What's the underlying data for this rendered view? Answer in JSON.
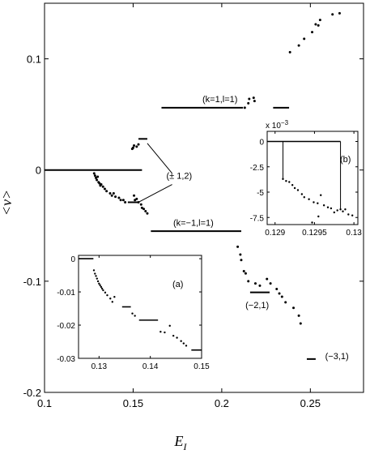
{
  "chart_data": [
    {
      "panel": "main",
      "type": "scatter",
      "xlabel": "E",
      "xlabel_sub": "I",
      "ylabel": "<ν>",
      "xlim": [
        0.1,
        0.28
      ],
      "ylim": [
        -0.2,
        0.15
      ],
      "x_ticks": [
        0.1,
        0.15,
        0.2,
        0.25
      ],
      "x_tick_labels": [
        "0.1",
        "0.15",
        "0.2",
        "0.25"
      ],
      "y_ticks": [
        -0.2,
        -0.1,
        0,
        0.1
      ],
      "y_tick_labels": [
        "-0.2",
        "-0.1",
        "0",
        "0.1"
      ],
      "segments": [
        {
          "x": [
            0.1,
            0.155
          ],
          "y": 0.0
        },
        {
          "x": [
            0.166,
            0.212
          ],
          "y": 0.056
        },
        {
          "x": [
            0.229,
            0.238
          ],
          "y": 0.056
        },
        {
          "x": [
            0.16,
            0.211
          ],
          "y": -0.055
        },
        {
          "x": [
            0.153,
            0.158
          ],
          "y": 0.028
        },
        {
          "x": [
            0.147,
            0.153
          ],
          "y": -0.029
        },
        {
          "x": [
            0.216,
            0.227
          ],
          "y": -0.11
        },
        {
          "x": [
            0.248,
            0.253
          ],
          "y": -0.17
        }
      ],
      "points": [
        [
          0.128,
          -0.003
        ],
        [
          0.1285,
          -0.005
        ],
        [
          0.129,
          -0.007
        ],
        [
          0.1295,
          -0.009
        ],
        [
          0.13,
          -0.006
        ],
        [
          0.1305,
          -0.011
        ],
        [
          0.131,
          -0.012
        ],
        [
          0.1315,
          -0.014
        ],
        [
          0.132,
          -0.013
        ],
        [
          0.133,
          -0.015
        ],
        [
          0.134,
          -0.017
        ],
        [
          0.135,
          -0.019
        ],
        [
          0.137,
          -0.021
        ],
        [
          0.138,
          -0.023
        ],
        [
          0.139,
          -0.021
        ],
        [
          0.14,
          -0.024
        ],
        [
          0.142,
          -0.025
        ],
        [
          0.143,
          -0.027
        ],
        [
          0.1445,
          -0.027
        ],
        [
          0.1455,
          -0.029
        ],
        [
          0.1505,
          -0.023
        ],
        [
          0.151,
          -0.027
        ],
        [
          0.152,
          -0.026
        ],
        [
          0.153,
          -0.029
        ],
        [
          0.1545,
          -0.031
        ],
        [
          0.155,
          -0.034
        ],
        [
          0.156,
          -0.035
        ],
        [
          0.157,
          -0.037
        ],
        [
          0.158,
          -0.039
        ],
        [
          0.1495,
          0.019
        ],
        [
          0.15,
          0.02
        ],
        [
          0.1505,
          0.022
        ],
        [
          0.152,
          0.021
        ],
        [
          0.153,
          0.023
        ],
        [
          0.213,
          0.056
        ],
        [
          0.215,
          0.06
        ],
        [
          0.2155,
          0.064
        ],
        [
          0.218,
          0.065
        ],
        [
          0.2185,
          0.062
        ],
        [
          0.209,
          -0.069
        ],
        [
          0.2105,
          -0.076
        ],
        [
          0.211,
          -0.081
        ],
        [
          0.2125,
          -0.091
        ],
        [
          0.2135,
          -0.093
        ],
        [
          0.215,
          -0.1
        ],
        [
          0.219,
          -0.102
        ],
        [
          0.2215,
          -0.104
        ],
        [
          0.2255,
          -0.098
        ],
        [
          0.2275,
          -0.102
        ],
        [
          0.231,
          -0.107
        ],
        [
          0.2325,
          -0.111
        ],
        [
          0.234,
          -0.114
        ],
        [
          0.236,
          -0.119
        ],
        [
          0.2405,
          -0.124
        ],
        [
          0.2435,
          -0.131
        ],
        [
          0.2445,
          -0.138
        ],
        [
          0.2385,
          0.106
        ],
        [
          0.2435,
          0.112
        ],
        [
          0.2465,
          0.118
        ],
        [
          0.251,
          0.124
        ],
        [
          0.253,
          0.131
        ],
        [
          0.2545,
          0.13
        ],
        [
          0.2555,
          0.135
        ],
        [
          0.2625,
          0.14
        ],
        [
          0.2665,
          0.141
        ]
      ],
      "annotations": [
        {
          "text": "(k=1,l=1)",
          "x": 0.199,
          "y": 0.061
        },
        {
          "text": "(k=−1,l=1)",
          "x": 0.184,
          "y": -0.05
        },
        {
          "text": "(± 1,2)",
          "x": 0.176,
          "y": -0.008
        },
        {
          "text": "(−2,1)",
          "x": 0.22,
          "y": -0.124
        },
        {
          "text": "(−3,1)",
          "x": 0.265,
          "y": -0.17
        }
      ],
      "leader_lines": [
        {
          "from": [
            0.158,
            0.024
          ],
          "to": [
            0.172,
            -0.003
          ]
        },
        {
          "from": [
            0.153,
            -0.029
          ],
          "to": [
            0.172,
            -0.013
          ]
        }
      ]
    },
    {
      "panel": "inset-a",
      "type": "scatter",
      "label": "(a)",
      "xlim": [
        0.126,
        0.15
      ],
      "ylim": [
        -0.03,
        0.001
      ],
      "x_ticks": [
        0.13,
        0.14,
        0.15
      ],
      "x_tick_labels": [
        "0.13",
        "0.14",
        "0.15"
      ],
      "y_ticks": [
        0,
        -0.01,
        -0.02,
        -0.03
      ],
      "y_tick_labels": [
        "0",
        "-0.01",
        "-0.02",
        "-0.03"
      ],
      "segments": [
        {
          "x": [
            0.126,
            0.1289
          ],
          "y": 0.0
        },
        {
          "x": [
            0.1345,
            0.1362
          ],
          "y": -0.0145
        },
        {
          "x": [
            0.1378,
            0.1415
          ],
          "y": -0.0185
        },
        {
          "x": [
            0.148,
            0.15
          ],
          "y": -0.0275
        }
      ],
      "points": [
        [
          0.129,
          -0.0035
        ],
        [
          0.1292,
          -0.0045
        ],
        [
          0.1294,
          -0.0052
        ],
        [
          0.1296,
          -0.006
        ],
        [
          0.1298,
          -0.0068
        ],
        [
          0.13,
          -0.0075
        ],
        [
          0.1302,
          -0.008
        ],
        [
          0.1304,
          -0.0085
        ],
        [
          0.1306,
          -0.009
        ],
        [
          0.1308,
          -0.0095
        ],
        [
          0.1312,
          -0.0102
        ],
        [
          0.1316,
          -0.011
        ],
        [
          0.1322,
          -0.012
        ],
        [
          0.1326,
          -0.013
        ],
        [
          0.133,
          -0.0115
        ],
        [
          0.1365,
          -0.0165
        ],
        [
          0.137,
          -0.0172
        ],
        [
          0.142,
          -0.022
        ],
        [
          0.1428,
          -0.0222
        ],
        [
          0.1438,
          -0.0202
        ],
        [
          0.1445,
          -0.0232
        ],
        [
          0.1452,
          -0.0238
        ],
        [
          0.146,
          -0.0248
        ],
        [
          0.1465,
          -0.0255
        ],
        [
          0.147,
          -0.0262
        ]
      ]
    },
    {
      "panel": "inset-b",
      "type": "scatter",
      "label": "(b)",
      "multiplier": "x 10",
      "multiplier_exp": "−3",
      "xlim": [
        0.1289,
        0.13005
      ],
      "ylim": [
        -8.2,
        1.0
      ],
      "x_ticks": [
        0.129,
        0.1295,
        0.13
      ],
      "x_tick_labels": [
        "0.129",
        "0.1295",
        "0.13"
      ],
      "y_ticks": [
        0,
        -2.5,
        -5,
        -7.5
      ],
      "y_tick_labels": [
        "0",
        "-2.5",
        "-5",
        "-7.5"
      ],
      "segments": [
        {
          "x": [
            0.1289,
            0.12983
          ],
          "y": 0.0
        }
      ],
      "connectors": [
        {
          "x": 0.1291,
          "y": [
            0.0,
            -3.8
          ]
        },
        {
          "x": 0.12983,
          "y": [
            0.0,
            -6.7
          ]
        }
      ],
      "points": [
        [
          0.1291,
          -3.7
        ],
        [
          0.12914,
          -3.9
        ],
        [
          0.12918,
          -4.0
        ],
        [
          0.12922,
          -4.3
        ],
        [
          0.12925,
          -4.6
        ],
        [
          0.12929,
          -4.8
        ],
        [
          0.12934,
          -5.2
        ],
        [
          0.12937,
          -5.5
        ],
        [
          0.12943,
          -5.7
        ],
        [
          0.12949,
          -6.0
        ],
        [
          0.12954,
          -6.1
        ],
        [
          0.12958,
          -5.3
        ],
        [
          0.12962,
          -6.3
        ],
        [
          0.12967,
          -6.5
        ],
        [
          0.12971,
          -6.6
        ],
        [
          0.12975,
          -7.0
        ],
        [
          0.12979,
          -6.8
        ],
        [
          0.12983,
          -6.7
        ],
        [
          0.12986,
          -6.9
        ],
        [
          0.12989,
          -6.7
        ],
        [
          0.12993,
          -7.2
        ],
        [
          0.12955,
          -7.4
        ],
        [
          0.12947,
          -8.0
        ],
        [
          0.12998,
          -7.3
        ]
      ]
    }
  ]
}
